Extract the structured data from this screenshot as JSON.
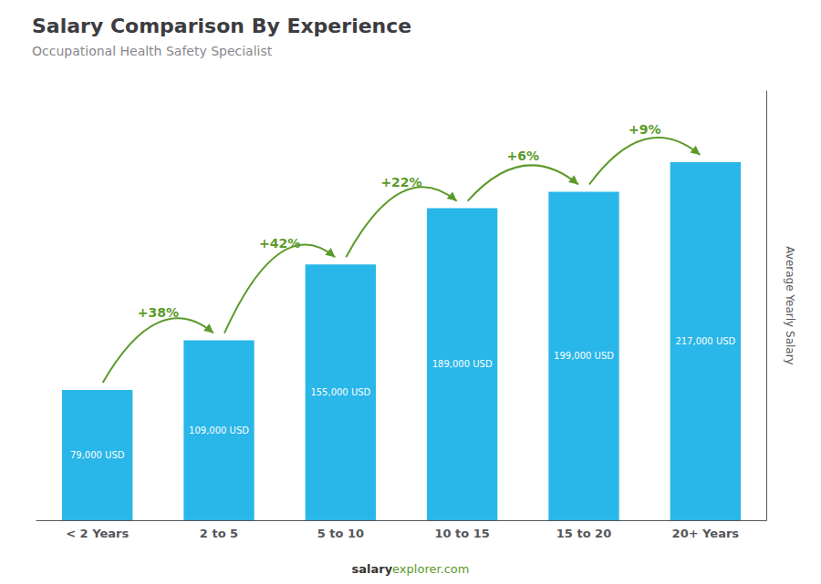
{
  "chart_data": {
    "type": "bar",
    "title": "Salary Comparison By Experience",
    "subtitle": "Occupational Health Safety Specialist",
    "categories": [
      "< 2 Years",
      "2 to 5",
      "5 to 10",
      "10 to 15",
      "15 to 20",
      "20+ Years"
    ],
    "values": [
      79000,
      109000,
      155000,
      189000,
      199000,
      217000
    ],
    "value_labels": [
      "79,000 USD",
      "109,000 USD",
      "155,000 USD",
      "189,000 USD",
      "199,000 USD",
      "217,000 USD"
    ],
    "data_labels": true,
    "color": "#29b6e8",
    "ylabel": "Average Yearly Salary",
    "ylim": [
      0,
      260000
    ],
    "grid": false,
    "tick_labels": "x",
    "annotations": [
      "+38%",
      "+42%",
      "+22%",
      "+6%",
      "+9%"
    ],
    "footer": [
      "salary",
      "explorer.com"
    ]
  }
}
